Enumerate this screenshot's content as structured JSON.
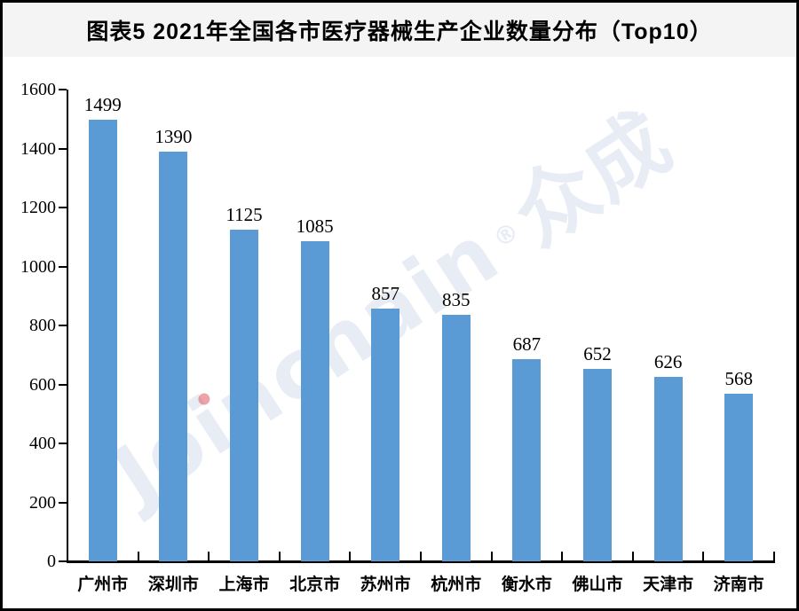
{
  "title": "图表5 2021年全国各市医疗器械生产企业数量分布（Top10）",
  "watermark": {
    "brand_latin": "Joinchain",
    "reg_mark": "®",
    "brand_cjk": "众成"
  },
  "colors": {
    "bar": "#5B9BD5",
    "title_band_bg": "#F4F4F4",
    "frame_border": "#000000",
    "axis": "#000000",
    "text": "#000000",
    "watermark_text": "rgba(93,129,185,0.14)",
    "watermark_dot": "rgba(222,90,96,0.55)"
  },
  "chart_data": {
    "type": "bar",
    "title": "图表5 2021年全国各市医疗器械生产企业数量分布（Top10）",
    "categories": [
      "广州市",
      "深圳市",
      "上海市",
      "北京市",
      "苏州市",
      "杭州市",
      "衡水市",
      "佛山市",
      "天津市",
      "济南市"
    ],
    "values": [
      1499,
      1390,
      1125,
      1085,
      857,
      835,
      687,
      652,
      626,
      568
    ],
    "xlabel": "",
    "ylabel": "",
    "ylim": [
      0,
      1600
    ],
    "yticks": [
      0,
      200,
      400,
      600,
      800,
      1000,
      1200,
      1400,
      1600
    ],
    "grid": false,
    "legend_position": "none",
    "data_labels": true,
    "bar_color": "#5B9BD5"
  }
}
